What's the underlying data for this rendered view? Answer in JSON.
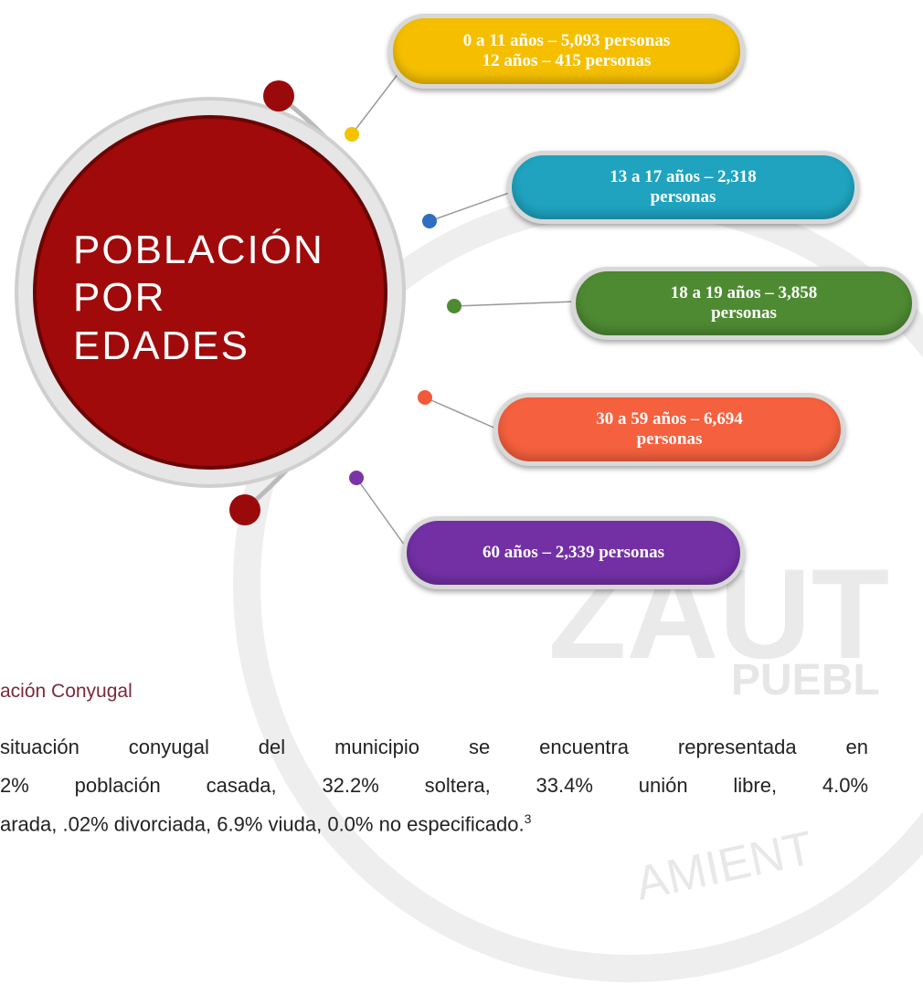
{
  "diagram": {
    "title_lines": [
      "POBLACIÓN",
      "POR",
      "EDADES"
    ],
    "groups": [
      {
        "lines": [
          "0 a 11 años – 5,093 personas",
          "12 años – 415 personas"
        ]
      },
      {
        "lines": [
          "13 a 17 años – 2,318",
          "personas"
        ]
      },
      {
        "lines": [
          "18 a 19 años – 3,858",
          "personas"
        ]
      },
      {
        "lines": [
          "30 a 59 años – 6,694",
          "personas"
        ]
      },
      {
        "lines": [
          "60 años – 2,339 personas"
        ]
      }
    ]
  },
  "watermark": {
    "words": [
      "ZAUT",
      "PUEBL",
      "AMIENT"
    ]
  },
  "section": {
    "heading": "ación Conyugal",
    "lines": [
      "situación conyugal del municipio se encuentra representada en",
      "2% población casada, 32.2% soltera, 33.4% unión libre, 4.0%",
      "arada, .02% divorciada, 6.9% viuda, 0.0% no especificado."
    ],
    "footnote": "3"
  }
}
